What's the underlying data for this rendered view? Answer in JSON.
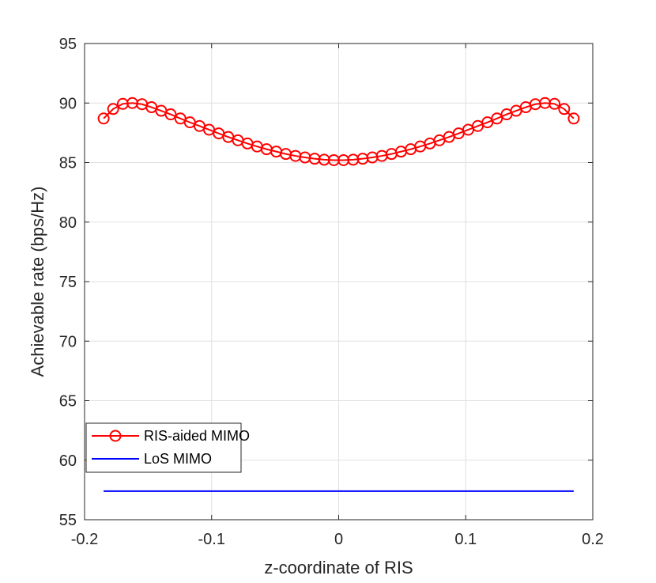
{
  "chart_data": {
    "type": "line",
    "xlabel": "z-coordinate of RIS",
    "ylabel": "Achievable rate (bps/Hz)",
    "xlim": [
      -0.2,
      0.2
    ],
    "ylim": [
      55,
      95
    ],
    "xticks": [
      -0.2,
      -0.1,
      0,
      0.1,
      0.2
    ],
    "xtick_labels": [
      "-0.2",
      "-0.1",
      "0",
      "0.1",
      "0.2"
    ],
    "yticks": [
      55,
      60,
      65,
      70,
      75,
      80,
      85,
      90,
      95
    ],
    "ytick_labels": [
      "55",
      "60",
      "65",
      "70",
      "75",
      "80",
      "85",
      "90",
      "95"
    ],
    "grid": true,
    "box": true,
    "legend_location": "bottom-left",
    "series": [
      {
        "name": "RIS-aided MIMO",
        "color": "#ff0000",
        "marker": "circle",
        "x": [
          -0.185,
          -0.1775,
          -0.1699,
          -0.1624,
          -0.1548,
          -0.1473,
          -0.1397,
          -0.1322,
          -0.1246,
          -0.1171,
          -0.1095,
          -0.102,
          -0.0944,
          -0.0869,
          -0.0793,
          -0.0718,
          -0.0642,
          -0.0567,
          -0.0491,
          -0.0416,
          -0.034,
          -0.0265,
          -0.0189,
          -0.0114,
          -0.0038,
          0.0038,
          0.0114,
          0.0189,
          0.0265,
          0.034,
          0.0416,
          0.0491,
          0.0567,
          0.0642,
          0.0718,
          0.0793,
          0.0869,
          0.0944,
          0.102,
          0.1095,
          0.1171,
          0.1246,
          0.1322,
          0.1397,
          0.1473,
          0.1548,
          0.1624,
          0.1699,
          0.1775,
          0.185
        ],
        "y": [
          88.7,
          89.5,
          89.93,
          90.0,
          89.9,
          89.65,
          89.35,
          89.05,
          88.7,
          88.38,
          88.07,
          87.76,
          87.45,
          87.15,
          86.87,
          86.6,
          86.35,
          86.12,
          85.92,
          85.72,
          85.56,
          85.43,
          85.32,
          85.24,
          85.2,
          85.2,
          85.24,
          85.32,
          85.43,
          85.56,
          85.72,
          85.92,
          86.12,
          86.35,
          86.6,
          86.87,
          87.15,
          87.45,
          87.76,
          88.07,
          88.38,
          88.7,
          89.05,
          89.35,
          89.65,
          89.9,
          90.0,
          89.93,
          89.5,
          88.7
        ]
      },
      {
        "name": "LoS MIMO",
        "color": "#0000ff",
        "marker": "none",
        "x": [
          -0.185,
          0.185
        ],
        "y": [
          57.4,
          57.4
        ]
      }
    ]
  }
}
